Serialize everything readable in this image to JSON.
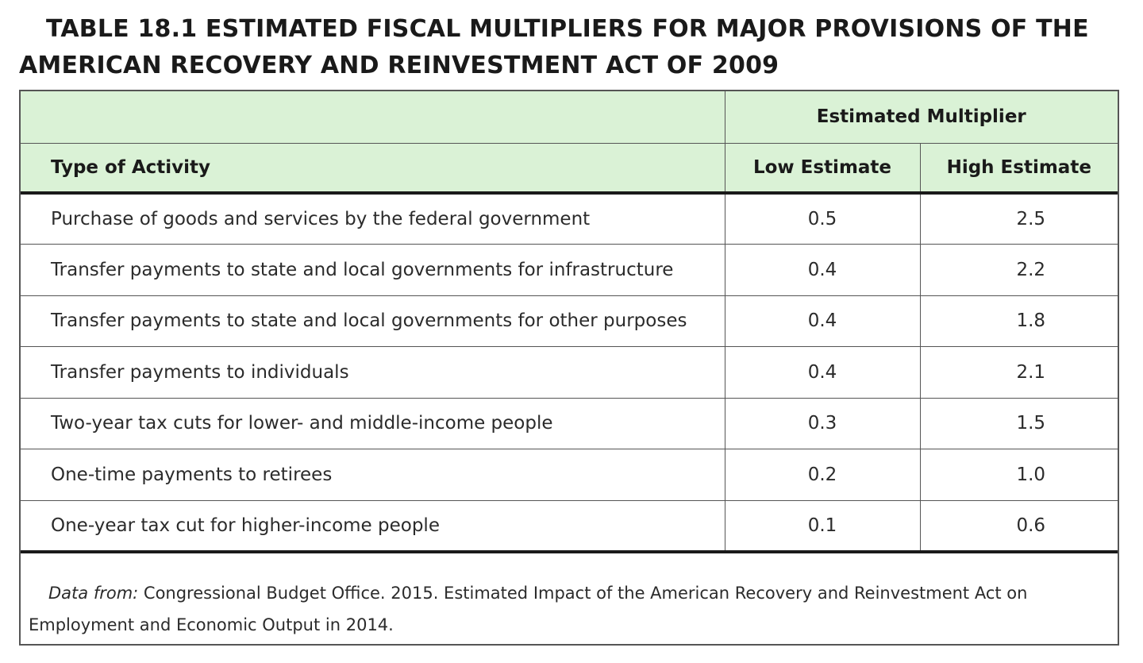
{
  "title": "TABLE 18.1 ESTIMATED FISCAL MULTIPLIERS FOR MAJOR PROVISIONS OF THE AMERICAN RECOVERY AND REINVESTMENT ACT OF 2009",
  "table": {
    "group_header": "Estimated Multiplier",
    "col_activity": "Type of Activity",
    "col_low": "Low Estimate",
    "col_high": "High Estimate",
    "rows": [
      {
        "activity": "Purchase of goods and services by the federal government",
        "low": "0.5",
        "high": "2.5"
      },
      {
        "activity": "Transfer payments to state and local governments for infrastructure",
        "low": "0.4",
        "high": "2.2"
      },
      {
        "activity": "Transfer payments to state and local governments for other purposes",
        "low": "0.4",
        "high": "1.8"
      },
      {
        "activity": "Transfer payments to individuals",
        "low": "0.4",
        "high": "2.1"
      },
      {
        "activity": "Two-year tax cuts for lower- and middle-income people",
        "low": "0.3",
        "high": "1.5"
      },
      {
        "activity": "One-time payments to retirees",
        "low": "0.2",
        "high": "1.0"
      },
      {
        "activity": "One-year tax cut for higher-income people",
        "low": "0.1",
        "high": "0.6"
      }
    ]
  },
  "source": {
    "label": "Data from:",
    "text": " Congressional Budget Office. 2015. Estimated Impact of the American Recovery and Reinvestment Act on Employment and Economic Output in 2014."
  }
}
